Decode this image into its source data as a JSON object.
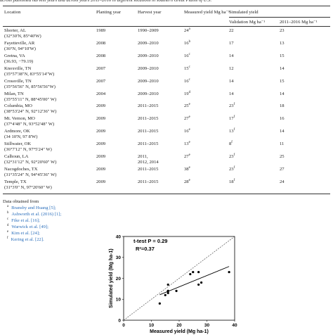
{
  "caption": "across published harvest years and across years 2011–2016 in different locations in southern Great Plains of U.S.",
  "table": {
    "headers": {
      "location": "Location",
      "planting": "Planting year",
      "harvest": "Harvest year",
      "measured": "Measured yield Mg ha⁻¹",
      "simulated": "Simulated yield",
      "validation": "Validation Mg ha⁻¹",
      "y2011": "2011–2016 Mg ha⁻¹"
    },
    "rows": [
      {
        "location": "Shorter, AL",
        "coords": "(32°30'N, 85°40'W)",
        "planting": "1989",
        "harvest": "1990–2009",
        "measured": "24",
        "measured_note": "a",
        "validation": "22",
        "y2011": "23"
      },
      {
        "location": "Fayetteville, AR",
        "coords": "(36°N, 94°10'W)",
        "planting": "2008",
        "harvest": "2009–2010",
        "measured": "16",
        "measured_note": "b",
        "validation": "17",
        "y2011": "13"
      },
      {
        "location": "Gretna, VA",
        "coords": "(36.93, −79.19)",
        "planting": "2008",
        "harvest": "2009–2010",
        "measured": "16",
        "measured_note": "c",
        "validation": "14",
        "y2011": "15"
      },
      {
        "location": "Knoxville, TN",
        "coords": "(35°57'38\"N, 83°55'14\"W)",
        "planting": "2007",
        "harvest": "2009–2010",
        "measured": "15",
        "measured_note": "c",
        "validation": "12",
        "y2011": "14"
      },
      {
        "location": "Crossville, TN",
        "coords": "(35°56'56\" N, 85°56'56\"W)",
        "planting": "2007",
        "harvest": "2009–2010",
        "measured": "16",
        "measured_note": "c",
        "validation": "14",
        "y2011": "15"
      },
      {
        "location": "Milan, TN",
        "coords": "(35°55'11\" N, 88°45'00\" W)",
        "planting": "2004",
        "harvest": "2009–2010",
        "measured": "19",
        "measured_note": "d",
        "validation": "14",
        "y2011": "14"
      },
      {
        "location": "Columbia, MO",
        "coords": "(38°53'24\" N, 92°12'36\" W)",
        "planting": "2009",
        "harvest": "2011–2015",
        "measured": "25",
        "measured_note": "e",
        "validation": "23",
        "validation_note": "f",
        "y2011": "18"
      },
      {
        "location": "Mt. Vernon, MO",
        "coords": "(37°4'48\" N, 93°52'48\" W)",
        "planting": "2009",
        "harvest": "2011–2015",
        "measured": "27",
        "measured_note": "e",
        "validation": "17",
        "validation_note": "f",
        "y2011": "16"
      },
      {
        "location": "Ardmore, OK",
        "coords": "(34 10'N, 97 8'W)",
        "planting": "2009",
        "harvest": "2011–2015",
        "measured": "16",
        "measured_note": "e",
        "validation": "13",
        "validation_note": "f",
        "y2011": "14"
      },
      {
        "location": "Stillwater, OK",
        "coords": "(36°7'12\" N, 97°5'24\" W)",
        "planting": "2009",
        "harvest": "2011–2015",
        "measured": "13",
        "measured_note": "e",
        "validation": "8",
        "validation_note": "f",
        "y2011": "11"
      },
      {
        "location": "Calhoun, LA",
        "coords": "(32°31'12\" N, 92°20'60\" W)",
        "planting": "2009",
        "harvest": "2011, 2012, 2014",
        "measured": "27",
        "measured_note": "e",
        "validation": "23",
        "validation_note": "f",
        "y2011": "25"
      },
      {
        "location": "Nacogdoches, TX",
        "coords": "(31°35'24\" N, 94°45'36\" W)",
        "planting": "2009",
        "harvest": "2011–2015",
        "measured": "38",
        "measured_note": "e",
        "validation": "23",
        "validation_note": "f",
        "y2011": "27"
      },
      {
        "location": "Temple, TX",
        "coords": "(31°3'0\" N, 97°20'60\" W)",
        "planting": "2009",
        "harvest": "2011–2015",
        "measured": "28",
        "measured_note": "e",
        "validation": "18",
        "validation_note": "f",
        "y2011": "24"
      }
    ]
  },
  "footnotes": {
    "intro": "Data obtained from",
    "items": [
      {
        "mark": "a",
        "text": "Bransby and Huang [5];"
      },
      {
        "mark": "b",
        "text": "Ashworth et al. (2016) [1];"
      },
      {
        "mark": "c",
        "text": "Fike et al. [16];"
      },
      {
        "mark": "d",
        "text": "Warwick et al. [49];"
      },
      {
        "mark": "e",
        "text": "Kim et al. [24];"
      },
      {
        "mark": "f",
        "text": "Kering et al. [22]."
      }
    ]
  },
  "chart_data": {
    "type": "scatter",
    "x_label": "Measured yield (Mg ha-1)",
    "y_label": "Simulated yield (Mg ha-1)",
    "annotations": [
      "t-test P = 0.29",
      "R²=0.37"
    ],
    "x": [
      24,
      16,
      16,
      15,
      16,
      19,
      25,
      27,
      16,
      13,
      27,
      38,
      28
    ],
    "y": [
      22,
      17,
      14,
      12,
      14,
      14,
      23,
      17,
      13,
      8,
      23,
      23,
      18
    ],
    "color": "#000000",
    "xlim": [
      0,
      40
    ],
    "ylim": [
      0,
      40
    ],
    "xticks": [
      0,
      10,
      20,
      30,
      40
    ],
    "yticks": [
      0,
      10,
      20,
      30,
      40
    ]
  }
}
